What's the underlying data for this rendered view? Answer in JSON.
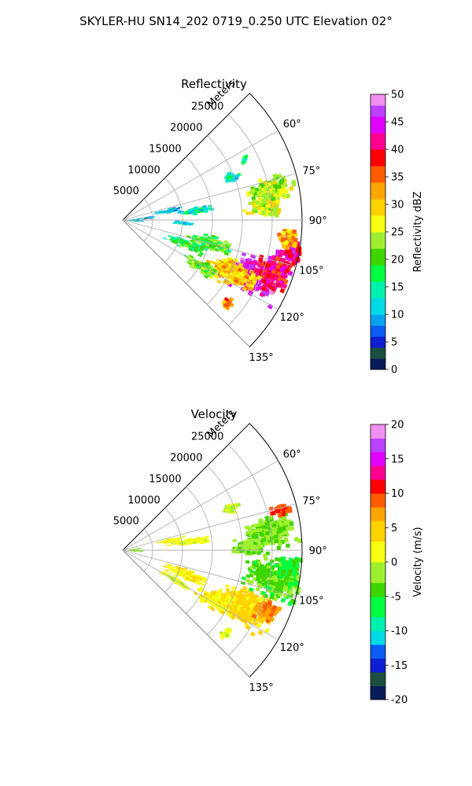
{
  "figure": {
    "title": "SKYLER-HU  SN14_202  0719_0.250 UTC Elevation 02°"
  },
  "chart_data": [
    {
      "type": "heatmap",
      "title": "Reflectivity",
      "range_label": "Meters",
      "range_ticks": [
        5000,
        10000,
        15000,
        20000,
        25000
      ],
      "range_max": 30000,
      "azimuth_ticks": [
        "60°",
        "75°",
        "90°",
        "105°",
        "120°",
        "135°"
      ],
      "azimuth_range": [
        45,
        135
      ],
      "colorbar": {
        "label": "Reflectivity dBZ",
        "min": 0,
        "max": 50,
        "ticks": [
          0,
          5,
          10,
          15,
          20,
          25,
          30,
          35,
          40,
          45,
          50
        ],
        "stops": [
          {
            "v": 0,
            "c": "#081b5b"
          },
          {
            "v": 2,
            "c": "#1b4f3f"
          },
          {
            "v": 4,
            "c": "#0d1fd0"
          },
          {
            "v": 6,
            "c": "#0a5cf2"
          },
          {
            "v": 8,
            "c": "#08a2ee"
          },
          {
            "v": 10,
            "c": "#05d9e6"
          },
          {
            "v": 13,
            "c": "#00f0b0"
          },
          {
            "v": 16,
            "c": "#00ff40"
          },
          {
            "v": 19,
            "c": "#3fd400"
          },
          {
            "v": 22,
            "c": "#9ef02e"
          },
          {
            "v": 25,
            "c": "#f6ff12"
          },
          {
            "v": 28,
            "c": "#ffd200"
          },
          {
            "v": 31,
            "c": "#ffa500"
          },
          {
            "v": 34,
            "c": "#ff5c00"
          },
          {
            "v": 37,
            "c": "#ff0000"
          },
          {
            "v": 40,
            "c": "#ff0090"
          },
          {
            "v": 43,
            "c": "#e000ff"
          },
          {
            "v": 46,
            "c": "#bb40ff"
          },
          {
            "v": 48,
            "c": "#f090f0"
          },
          {
            "v": 50,
            "c": "#fff0ff"
          }
        ]
      }
    },
    {
      "type": "heatmap",
      "title": "Velocity",
      "range_label": "Meters",
      "range_ticks": [
        5000,
        10000,
        15000,
        20000,
        25000
      ],
      "range_max": 30000,
      "azimuth_ticks": [
        "60°",
        "75°",
        "90°",
        "105°",
        "120°",
        "135°"
      ],
      "azimuth_range": [
        45,
        135
      ],
      "colorbar": {
        "label": "Velocity (m/s)",
        "min": -20,
        "max": 20,
        "ticks": [
          -20,
          -15,
          -10,
          -5,
          0,
          5,
          10,
          15,
          20
        ],
        "stops": [
          {
            "v": -20,
            "c": "#081b5b"
          },
          {
            "v": -18,
            "c": "#1b4f3f"
          },
          {
            "v": -16,
            "c": "#0d1fd0"
          },
          {
            "v": -14,
            "c": "#0a5cf2"
          },
          {
            "v": -12,
            "c": "#05d9e6"
          },
          {
            "v": -10,
            "c": "#00f0b0"
          },
          {
            "v": -8,
            "c": "#00ff40"
          },
          {
            "v": -5,
            "c": "#3fd400"
          },
          {
            "v": -3,
            "c": "#9ef02e"
          },
          {
            "v": 0,
            "c": "#f6ff12"
          },
          {
            "v": 3,
            "c": "#ffd200"
          },
          {
            "v": 6,
            "c": "#ffa500"
          },
          {
            "v": 8,
            "c": "#ff5c00"
          },
          {
            "v": 10,
            "c": "#ff0000"
          },
          {
            "v": 12,
            "c": "#ff0090"
          },
          {
            "v": 14,
            "c": "#e000ff"
          },
          {
            "v": 16,
            "c": "#bb40ff"
          },
          {
            "v": 18,
            "c": "#f090f0"
          },
          {
            "v": 20,
            "c": "#fff0ff"
          }
        ]
      }
    }
  ]
}
